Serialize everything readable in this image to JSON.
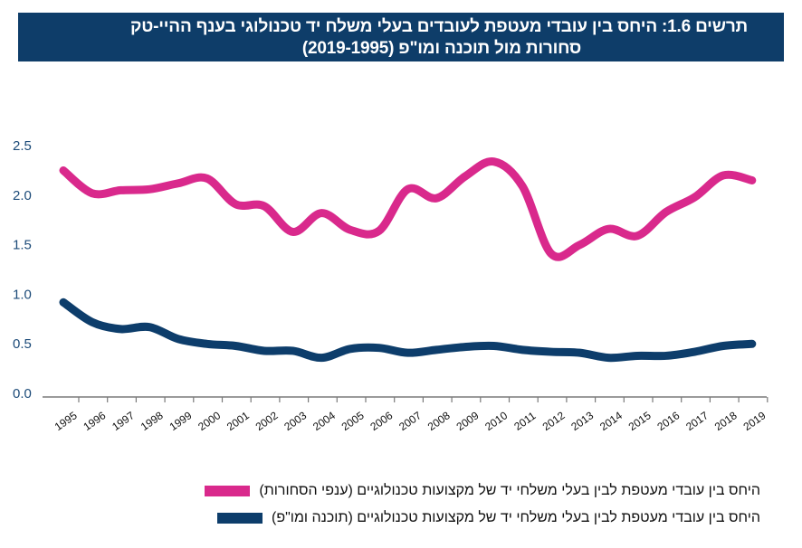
{
  "header": {
    "title_line1": "תרשים 1.6: היחס בין עובדי מעטפת לעובדים בעלי משלח יד טכנולוגי בענף ההיי-טק",
    "title_line2": "סחורות מול תוכנה ומו\"פ (2019-1995)"
  },
  "colors": {
    "header_bg": "#0e3d69",
    "commerce": "#d9298c",
    "software": "#0d3d6b",
    "axis": "#7a7a7a"
  },
  "chart_data": {
    "type": "line",
    "title": "תרשים 1.6: היחס בין עובדי מעטפת לעובדים בעלי משלח יד טכנולוגי בענף ההיי-טק סחורות מול תוכנה ומו\"פ (2019-1995)",
    "xlabel": "",
    "ylabel": "",
    "ylim": [
      0,
      2.5
    ],
    "yticks": [
      "0.0",
      "0.5",
      "1.0",
      "1.5",
      "2.0",
      "2.5"
    ],
    "ytick_values": [
      0,
      0.5,
      1.0,
      1.5,
      2.0,
      2.5
    ],
    "grid": false,
    "legend_position": "bottom",
    "smooth": true,
    "x": [
      "1995",
      "1996",
      "1997",
      "1998",
      "1999",
      "2000",
      "2001",
      "2002",
      "2003",
      "2004",
      "2005",
      "2006",
      "2007",
      "2008",
      "2009",
      "2010",
      "2011",
      "2012",
      "2013",
      "2014",
      "2015",
      "2016",
      "2017",
      "2018",
      "2019"
    ],
    "series": [
      {
        "name": "היחס בין עובדי מעטפת לבין בעלי משלחי יד של מקצועות טכנולוגיים (ענפי הסחורות)",
        "color": "#d9298c",
        "values": [
          2.24,
          2.01,
          2.04,
          2.05,
          2.11,
          2.16,
          1.9,
          1.88,
          1.62,
          1.81,
          1.64,
          1.63,
          2.05,
          1.96,
          2.18,
          2.33,
          2.08,
          1.4,
          1.49,
          1.65,
          1.58,
          1.82,
          1.97,
          2.19,
          2.14
        ]
      },
      {
        "name": "היחס בין עובדי מעטפת לבין בעלי משלחי יד של מקצועות טכנולוגיים (תוכנה ומו\"פ)",
        "color": "#0d3d6b",
        "values": [
          0.91,
          0.71,
          0.64,
          0.66,
          0.54,
          0.49,
          0.47,
          0.42,
          0.42,
          0.35,
          0.44,
          0.45,
          0.4,
          0.43,
          0.46,
          0.47,
          0.43,
          0.41,
          0.4,
          0.35,
          0.37,
          0.37,
          0.41,
          0.47,
          0.49
        ]
      }
    ]
  }
}
